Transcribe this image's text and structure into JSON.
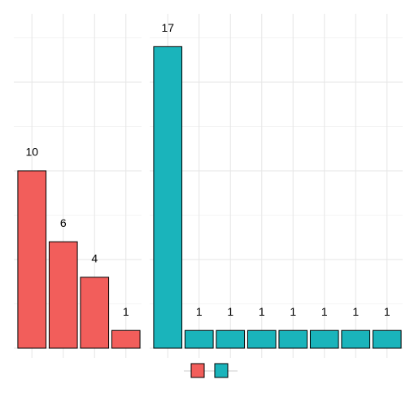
{
  "chart_data": [
    {
      "type": "bar",
      "categories": [
        null,
        null,
        null,
        null
      ],
      "values": [
        10,
        6,
        4,
        1
      ],
      "color": "#f25e5b",
      "ylim": [
        -0.55,
        18.85
      ],
      "yticks": [
        0,
        5,
        10,
        15
      ],
      "grid": true
    },
    {
      "type": "bar",
      "categories": [
        null,
        null,
        null,
        null,
        null,
        null,
        null,
        null
      ],
      "values": [
        17,
        1,
        1,
        1,
        1,
        1,
        1,
        1
      ],
      "color": "#1ab4bb",
      "ylim": [
        -0.55,
        18.85
      ],
      "yticks": [
        0,
        5,
        10,
        15
      ],
      "grid": true
    }
  ]
}
